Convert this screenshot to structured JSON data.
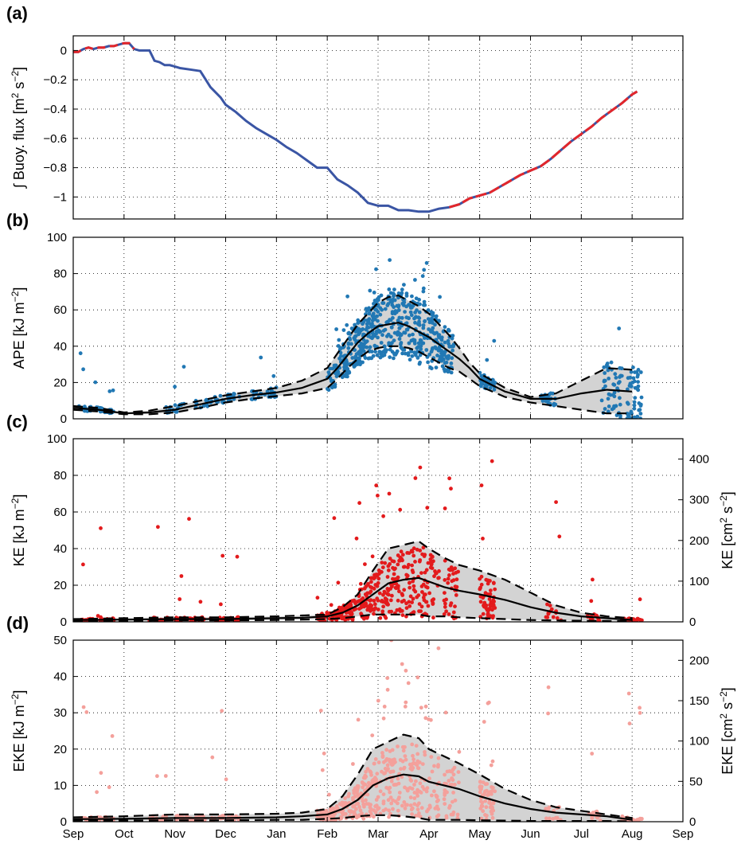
{
  "figure": {
    "months": [
      "Sep",
      "Oct",
      "Nov",
      "Dec",
      "Jan",
      "Feb",
      "Mar",
      "Apr",
      "May",
      "Jun",
      "Jul",
      "Aug",
      "Sep"
    ]
  },
  "colors": {
    "buoy_blue": "#3a55a4",
    "buoy_red": "#e3262b",
    "ape_dots": "#2178b4",
    "ke_dots": "#e31a1c",
    "eke_dots": "#f4a09b",
    "envelope": "#d3d3d3",
    "line": "#000000"
  },
  "chart_data": [
    {
      "panel": "(a)",
      "type": "line",
      "ylabel_prefix": "∫ Buoy. flux [m",
      "ylabel_sup1": "2",
      "ylabel_mid": " s",
      "ylabel_sup2": "−2",
      "ylabel_suffix": "]",
      "xlim": [
        0,
        12
      ],
      "ylim": [
        -1.15,
        0.1
      ],
      "yticks": [
        0,
        -0.2,
        -0.4,
        -0.6,
        -0.8,
        -1
      ],
      "ytick_labels": [
        "0",
        "−0.2",
        "−0.4",
        "−0.6",
        "−0.8",
        "−1"
      ],
      "series": [
        {
          "x": [
            0.0,
            0.1,
            0.2,
            0.3,
            0.4,
            0.5,
            0.6,
            0.7,
            0.8,
            0.9,
            1.0,
            1.1,
            1.2,
            1.3,
            1.4,
            1.5,
            1.6,
            1.7,
            1.8,
            1.9,
            2.0,
            2.1,
            2.3,
            2.5,
            2.7,
            2.9,
            3.0,
            3.2,
            3.4,
            3.6,
            3.8,
            4.0,
            4.2,
            4.4,
            4.6,
            4.8,
            5.0,
            5.2,
            5.4,
            5.6,
            5.8,
            6.0,
            6.2,
            6.4,
            6.6,
            6.8,
            7.0,
            7.2,
            7.4,
            7.6,
            7.8,
            8.0,
            8.2,
            8.4,
            8.6,
            8.8,
            9.0,
            9.2,
            9.4,
            9.6,
            9.8,
            10.0,
            10.2,
            10.4,
            10.6,
            10.8,
            11.0,
            11.1
          ],
          "y": [
            -0.01,
            -0.01,
            0.01,
            0.02,
            0.01,
            0.02,
            0.02,
            0.03,
            0.03,
            0.04,
            0.05,
            0.05,
            0.01,
            0.0,
            0.0,
            0.0,
            -0.07,
            -0.08,
            -0.1,
            -0.1,
            -0.11,
            -0.12,
            -0.13,
            -0.14,
            -0.25,
            -0.32,
            -0.37,
            -0.42,
            -0.48,
            -0.53,
            -0.57,
            -0.61,
            -0.66,
            -0.7,
            -0.75,
            -0.8,
            -0.8,
            -0.88,
            -0.92,
            -0.97,
            -1.04,
            -1.06,
            -1.06,
            -1.09,
            -1.09,
            -1.1,
            -1.1,
            -1.08,
            -1.07,
            -1.05,
            -1.01,
            -0.99,
            -0.97,
            -0.93,
            -0.89,
            -0.85,
            -0.82,
            -0.79,
            -0.74,
            -0.68,
            -0.62,
            -0.57,
            -0.52,
            -0.46,
            -0.41,
            -0.36,
            -0.3,
            -0.28
          ]
        }
      ]
    },
    {
      "panel": "(b)",
      "type": "scatter",
      "ylabel_prefix": "APE [kJ m",
      "ylabel_sup1": "−2",
      "ylabel_suffix": "]",
      "xlim": [
        0,
        12
      ],
      "ylim": [
        0,
        100
      ],
      "yticks": [
        0,
        20,
        40,
        60,
        80,
        100
      ],
      "mean": {
        "x": [
          0,
          0.5,
          1,
          1.5,
          2,
          2.5,
          3,
          3.5,
          4,
          4.5,
          5,
          5.2,
          5.4,
          5.6,
          5.8,
          6,
          6.2,
          6.4,
          6.6,
          6.8,
          7,
          7.2,
          7.4,
          7.6,
          7.8,
          8,
          8.5,
          9,
          9.5,
          10,
          10.5,
          11
        ],
        "y": [
          6,
          5,
          3,
          3.5,
          5,
          8,
          11,
          13,
          14.5,
          17,
          22,
          28,
          35,
          42,
          47,
          51,
          52,
          53,
          51,
          48,
          45,
          41,
          37,
          33,
          28,
          22,
          15,
          11,
          11,
          14,
          16,
          15
        ]
      },
      "upper": [
        7,
        6,
        3.5,
        4.5,
        7,
        10,
        13,
        15,
        17,
        21,
        28,
        36,
        44,
        52,
        58,
        64,
        67,
        68,
        65,
        62,
        58,
        52,
        46,
        39,
        31,
        25,
        17,
        12,
        14,
        21,
        28,
        27
      ],
      "lower": [
        5,
        4,
        2.5,
        2.5,
        3.5,
        6,
        9,
        11,
        12.5,
        14,
        17,
        22,
        28,
        33,
        37,
        39,
        40,
        40,
        39,
        37,
        34,
        31,
        28,
        26,
        22,
        18,
        12,
        9,
        7,
        5,
        3,
        3
      ]
    },
    {
      "panel": "(c)",
      "type": "scatter",
      "ylabel_prefix": "KE [kJ m",
      "ylabel_sup1": "−2",
      "ylabel_suffix": "]",
      "y2label_prefix": "KE [cm",
      "y2label_sup1": "2",
      "y2label_mid": " s",
      "y2label_sup2": "−2",
      "y2label_suffix": "]",
      "xlim": [
        0,
        12
      ],
      "ylim": [
        0,
        100
      ],
      "yticks": [
        0,
        20,
        40,
        60,
        80,
        100
      ],
      "y2ticks": [
        0,
        100,
        200,
        300,
        400
      ],
      "mean": {
        "x": [
          0,
          1,
          2,
          3,
          4,
          4.5,
          5,
          5.3,
          5.6,
          5.9,
          6.2,
          6.5,
          6.8,
          7,
          7.3,
          7.6,
          8,
          8.5,
          9,
          9.5,
          10,
          10.5,
          11
        ],
        "y": [
          1,
          1.2,
          1.5,
          1.5,
          2,
          2.2,
          3,
          5,
          9,
          15,
          21,
          23,
          24,
          22,
          19,
          17,
          15,
          12,
          8,
          5,
          3,
          2,
          1
        ]
      },
      "upper": [
        1.5,
        2,
        2.5,
        2.5,
        3,
        3.5,
        4,
        8,
        15,
        28,
        40,
        42,
        44,
        40,
        35,
        31,
        28,
        23,
        16,
        9,
        5,
        3,
        2
      ],
      "lower": [
        0.5,
        0.6,
        0.8,
        0.8,
        1,
        1.2,
        1.5,
        2,
        3,
        4,
        4,
        4,
        4,
        3,
        3,
        2.5,
        2,
        1.5,
        1,
        0.8,
        0.6,
        0.5,
        0.4
      ]
    },
    {
      "panel": "(d)",
      "type": "scatter",
      "ylabel_prefix": "EKE [kJ m",
      "ylabel_sup1": "−2",
      "ylabel_suffix": "]",
      "y2label_prefix": "EKE [cm",
      "y2label_sup1": "2",
      "y2label_mid": " s",
      "y2label_sup2": "−2",
      "y2label_suffix": "]",
      "xlim": [
        0,
        12
      ],
      "ylim": [
        0,
        50
      ],
      "yticks": [
        0,
        10,
        20,
        30,
        40,
        50
      ],
      "y2ticks": [
        0,
        50,
        100,
        150,
        200
      ],
      "mean": {
        "x": [
          0,
          1,
          2,
          3,
          4,
          4.5,
          5,
          5.3,
          5.6,
          5.9,
          6.2,
          6.5,
          6.8,
          7,
          7.3,
          7.6,
          8,
          8.5,
          9,
          9.5,
          10,
          10.5,
          11
        ],
        "y": [
          0.7,
          0.8,
          1,
          1,
          1.2,
          1.5,
          2,
          3.5,
          6,
          10,
          12,
          13,
          12.5,
          11,
          10,
          9,
          7,
          5,
          3.5,
          2.5,
          2,
          1.5,
          0.5
        ]
      },
      "upper": [
        1.2,
        1.5,
        2,
        2,
        2.2,
        2.5,
        3.5,
        7,
        13,
        20,
        22,
        24,
        23,
        20,
        18,
        16,
        13,
        9,
        6,
        4,
        3,
        2,
        1
      ],
      "lower": [
        0.3,
        0.3,
        0.4,
        0.4,
        0.5,
        0.5,
        0.8,
        1,
        1.5,
        1.8,
        1.8,
        1.5,
        1,
        0.5,
        0.5,
        0.5,
        0.4,
        0.3,
        0.2,
        0.2,
        0.2,
        0.2,
        0.1
      ]
    }
  ]
}
